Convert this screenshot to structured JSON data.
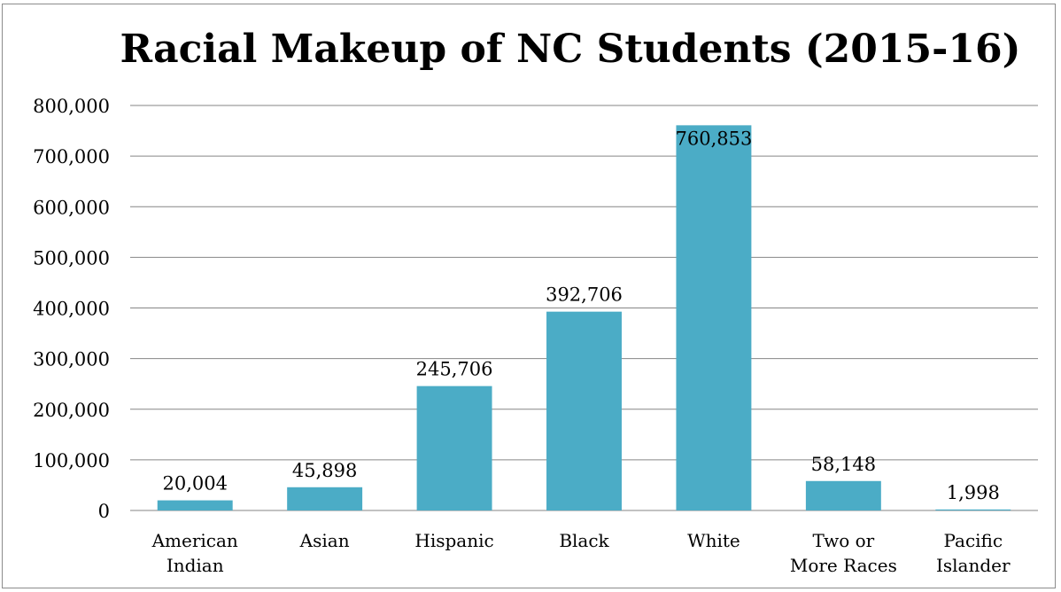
{
  "chart_data": {
    "type": "bar",
    "title": "Racial Makeup of NC Students (2015-16)",
    "xlabel": "",
    "ylabel": "",
    "categories": [
      [
        "American",
        "Indian"
      ],
      [
        "Asian"
      ],
      [
        "Hispanic"
      ],
      [
        "Black"
      ],
      [
        "White"
      ],
      [
        "Two or",
        "More Races"
      ],
      [
        "Pacific",
        "Islander"
      ]
    ],
    "values": [
      20004,
      45898,
      245706,
      392706,
      760853,
      58148,
      1998
    ],
    "data_labels": [
      "20,004",
      "45,898",
      "245,706",
      "392,706",
      "760,853",
      "58,148",
      "1,998"
    ],
    "ylim": [
      0,
      800000
    ],
    "y_ticks": [
      0,
      100000,
      200000,
      300000,
      400000,
      500000,
      600000,
      700000,
      800000
    ],
    "y_tick_labels": [
      "0",
      "100,000",
      "200,000",
      "300,000",
      "400,000",
      "500,000",
      "600,000",
      "700,000",
      "800,000"
    ],
    "grid": true,
    "legend": "none",
    "bar_color": "#4bacc6",
    "gridline_color": "#868686"
  }
}
